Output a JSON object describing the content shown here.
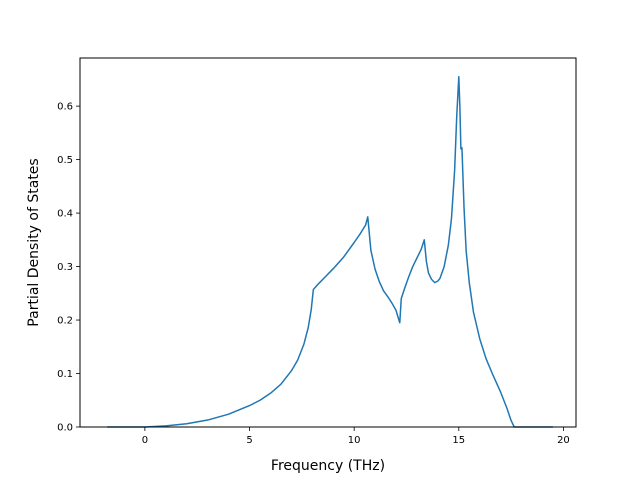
{
  "chart_data": {
    "type": "line",
    "title": "",
    "xlabel": "Frequency (THz)",
    "ylabel": "Partial Density of States",
    "xlim": [
      -3.1,
      20.6
    ],
    "ylim": [
      0,
      0.69
    ],
    "xticks": [
      0,
      5,
      10,
      15,
      20
    ],
    "yticks": [
      0.0,
      0.1,
      0.2,
      0.3,
      0.4,
      0.5,
      0.6
    ],
    "xtick_labels": [
      "0",
      "5",
      "10",
      "15",
      "20"
    ],
    "ytick_labels": [
      "0.0",
      "0.1",
      "0.2",
      "0.3",
      "0.4",
      "0.5",
      "0.6"
    ],
    "grid": false,
    "legend": false,
    "series": [
      {
        "color": "#1f77b4",
        "x": [
          -1.8,
          -1.0,
          0.0,
          1.0,
          2.0,
          3.0,
          4.0,
          5.0,
          5.5,
          6.0,
          6.5,
          7.0,
          7.3,
          7.6,
          7.8,
          7.95,
          8.05,
          8.3,
          8.6,
          9.0,
          9.5,
          10.0,
          10.3,
          10.55,
          10.65,
          10.8,
          11.0,
          11.2,
          11.4,
          11.6,
          11.8,
          12.0,
          12.1,
          12.18,
          12.25,
          12.4,
          12.6,
          12.8,
          13.0,
          13.2,
          13.35,
          13.45,
          13.55,
          13.7,
          13.85,
          14.0,
          14.1,
          14.3,
          14.5,
          14.65,
          14.8,
          14.9,
          15.0,
          15.05,
          15.1,
          15.15,
          15.25,
          15.35,
          15.5,
          15.7,
          16.0,
          16.3,
          16.6,
          17.0,
          17.3,
          17.5,
          17.65,
          17.75,
          18.0,
          19.5
        ],
        "y": [
          0.0,
          0.0,
          0.0,
          0.002,
          0.006,
          0.013,
          0.024,
          0.04,
          0.05,
          0.063,
          0.08,
          0.105,
          0.125,
          0.155,
          0.185,
          0.22,
          0.257,
          0.268,
          0.28,
          0.296,
          0.318,
          0.345,
          0.362,
          0.378,
          0.393,
          0.33,
          0.295,
          0.272,
          0.255,
          0.244,
          0.232,
          0.218,
          0.205,
          0.195,
          0.24,
          0.258,
          0.28,
          0.3,
          0.316,
          0.332,
          0.35,
          0.31,
          0.288,
          0.276,
          0.27,
          0.273,
          0.278,
          0.3,
          0.34,
          0.39,
          0.48,
          0.58,
          0.655,
          0.6,
          0.52,
          0.522,
          0.41,
          0.33,
          0.27,
          0.215,
          0.165,
          0.128,
          0.1,
          0.065,
          0.035,
          0.012,
          0.0,
          0.0,
          0.0,
          0.0
        ]
      }
    ]
  }
}
